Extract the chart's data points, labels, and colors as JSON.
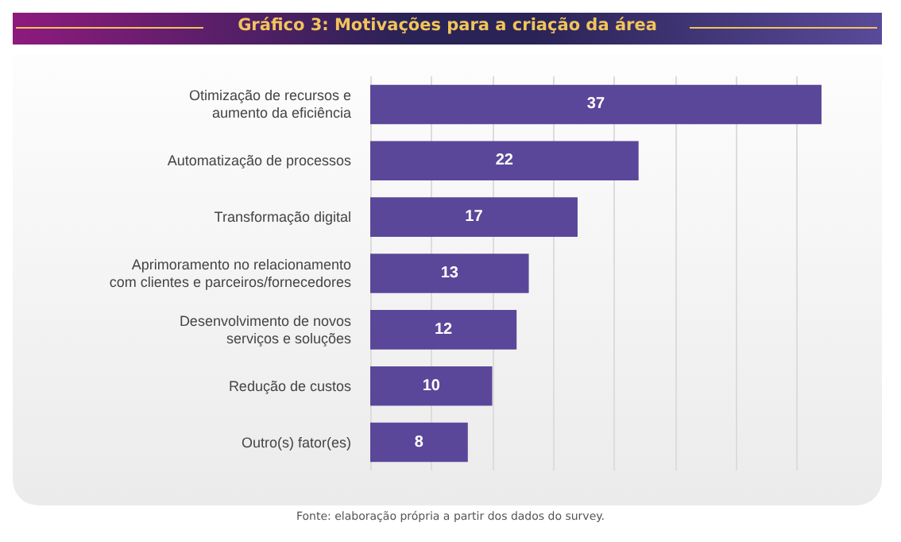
{
  "chart_data": {
    "type": "bar",
    "orientation": "horizontal",
    "title": "Gráfico 3: Motivações para a criação da área",
    "categories": [
      "Otimização de recursos e\naumento da eficiência",
      "Automatização de processos",
      "Transformação digital",
      "Aprimoramento no relacionamento\ncom clientes e parceiros/fornecedores",
      "Desenvolvimento de novos\nserviços e soluções",
      "Redução de custos",
      "Outro(s) fator(es)"
    ],
    "values": [
      37,
      22,
      17,
      13,
      12,
      10,
      8
    ],
    "color": "#5a4799",
    "data_labels": true,
    "grid": "x",
    "tick_labels": "y",
    "xticks": [
      {
        "value": 0,
        "label": null
      },
      {
        "value": 5,
        "label": null
      },
      {
        "value": 10,
        "label": null
      },
      {
        "value": 15,
        "label": null
      },
      {
        "value": 20,
        "label": null
      },
      {
        "value": 25,
        "label": null
      },
      {
        "value": 30,
        "label": null
      },
      {
        "value": 35,
        "label": null
      }
    ],
    "annotations": [
      "Fonte: elaboração própria a partir dos dados do survey."
    ]
  }
}
